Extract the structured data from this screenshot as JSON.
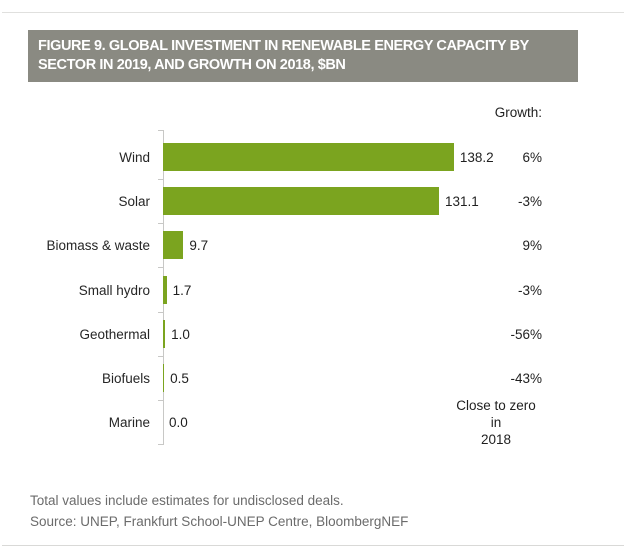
{
  "figure": {
    "title_line1": "FIGURE 9. GLOBAL INVESTMENT IN RENEWABLE ENERGY CAPACITY BY",
    "title_line2": "SECTOR IN 2019, AND GROWTH ON 2018, $BN"
  },
  "chart_data": {
    "type": "bar",
    "orientation": "horizontal",
    "title": "FIGURE 9. GLOBAL INVESTMENT IN RENEWABLE ENERGY CAPACITY BY SECTOR IN 2019, AND GROWTH ON 2018, $BN",
    "units": "$bn",
    "categories": [
      "Wind",
      "Solar",
      "Biomass & waste",
      "Small hydro",
      "Geothermal",
      "Biofuels",
      "Marine"
    ],
    "values": [
      138.2,
      131.1,
      9.7,
      1.7,
      1.0,
      0.5,
      0.0
    ],
    "value_labels": [
      "138.2",
      "131.1",
      "9.7",
      "1.7",
      "1.0",
      "0.5",
      "0.0"
    ],
    "growth_header": "Growth:",
    "growth": [
      "6%",
      "-3%",
      "9%",
      "-3%",
      "-56%",
      "-43%",
      "Close to zero in\n2018"
    ],
    "xlabel": "",
    "ylabel": "",
    "xlim": [
      0,
      145
    ],
    "grid": false,
    "legend": false,
    "bar_color": "#7BA41F"
  },
  "footer": {
    "note": "Total values include estimates for undisclosed deals.",
    "source": "Source: UNEP, Frankfurt School-UNEP Centre, BloombergNEF"
  },
  "colors": {
    "title_bg": "#8A8A82",
    "title_text": "#FFFFFF",
    "bar": "#7BA41F",
    "axis": "#C8C8C6",
    "text": "#262626",
    "footer_text": "#6B6B6B"
  }
}
